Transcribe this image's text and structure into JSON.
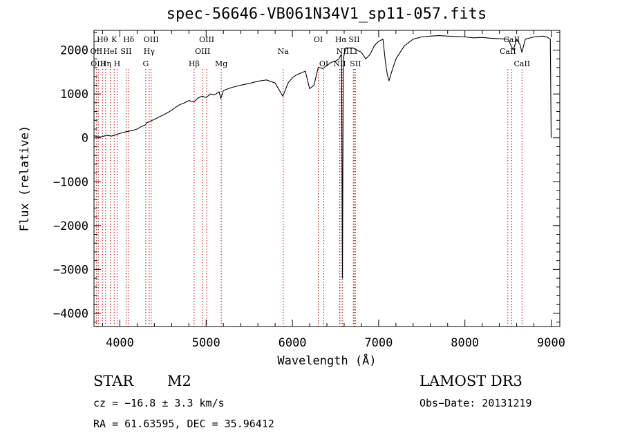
{
  "chart_data": {
    "type": "line",
    "title": "spec-56646-VB061N34V1_sp11-057.fits",
    "xlabel": "Wavelength (Å)",
    "ylabel": "Flux (relative)",
    "xlim": [
      3700,
      9100
    ],
    "ylim": [
      -4300,
      2450
    ],
    "xticks": [
      4000,
      5000,
      6000,
      7000,
      8000,
      9000
    ],
    "yticks": [
      -4000,
      -3000,
      -2000,
      -1000,
      0,
      1000,
      2000
    ],
    "series": [
      {
        "name": "flux",
        "x": [
          3700,
          3750,
          3800,
          3850,
          3900,
          3950,
          4000,
          4050,
          4100,
          4150,
          4200,
          4250,
          4300,
          4310,
          4350,
          4400,
          4450,
          4500,
          4550,
          4600,
          4650,
          4700,
          4750,
          4800,
          4860,
          4900,
          4950,
          5000,
          5050,
          5100,
          5150,
          5170,
          5180,
          5200,
          5300,
          5400,
          5500,
          5600,
          5700,
          5800,
          5850,
          5890,
          5900,
          5950,
          6000,
          6050,
          6100,
          6150,
          6200,
          6250,
          6300,
          6350,
          6400,
          6450,
          6500,
          6540,
          6560,
          6570,
          6580,
          6590,
          6600,
          6620,
          6650,
          6700,
          6750,
          6800,
          6850,
          6900,
          6950,
          7000,
          7050,
          7080,
          7100,
          7120,
          7150,
          7200,
          7300,
          7400,
          7500,
          7600,
          7700,
          7800,
          7900,
          8000,
          8100,
          8200,
          8300,
          8400,
          8500,
          8540,
          8560,
          8600,
          8640,
          8660,
          8700,
          8800,
          8900,
          8950,
          8990,
          9000
        ],
        "y": [
          50,
          20,
          30,
          60,
          40,
          70,
          100,
          130,
          150,
          170,
          200,
          260,
          300,
          340,
          380,
          420,
          470,
          520,
          570,
          630,
          700,
          760,
          800,
          850,
          820,
          900,
          950,
          920,
          1000,
          980,
          1050,
          900,
          950,
          1080,
          1150,
          1200,
          1240,
          1290,
          1320,
          1250,
          1080,
          950,
          1000,
          1250,
          1370,
          1440,
          1480,
          1520,
          1120,
          1200,
          1610,
          1580,
          1650,
          1720,
          1750,
          1800,
          1880,
          1900,
          -3200,
          1780,
          1900,
          2050,
          2050,
          2050,
          2000,
          1950,
          1800,
          1900,
          2100,
          2200,
          2250,
          1700,
          1450,
          1300,
          1500,
          1800,
          2100,
          2250,
          2300,
          2320,
          2330,
          2320,
          2310,
          2300,
          2280,
          2290,
          2270,
          2260,
          2250,
          2080,
          2000,
          2250,
          2120,
          1950,
          2250,
          2300,
          2320,
          2300,
          2250,
          0
        ]
      }
    ],
    "lines": [
      {
        "name": "Hθ",
        "wave": 3798,
        "row": 0
      },
      {
        "name": "OII",
        "wave": 3727,
        "row": 1
      },
      {
        "name": "OIII",
        "wave": 3750,
        "row": 2
      },
      {
        "name": "Hη",
        "wave": 3835,
        "row": 2
      },
      {
        "name": "HeI",
        "wave": 3889,
        "row": 1
      },
      {
        "name": "K",
        "wave": 3934,
        "row": 0
      },
      {
        "name": "H",
        "wave": 3968,
        "row": 2
      },
      {
        "name": "SII",
        "wave": 4072,
        "row": 1
      },
      {
        "name": "Hδ",
        "wave": 4102,
        "row": 0
      },
      {
        "name": "G",
        "wave": 4300,
        "row": 2
      },
      {
        "name": "Hγ",
        "wave": 4340,
        "row": 1
      },
      {
        "name": "OIII",
        "wave": 4363,
        "row": 0
      },
      {
        "name": "Hβ",
        "wave": 4861,
        "row": 2
      },
      {
        "name": "OIII",
        "wave": 4959,
        "row": 1
      },
      {
        "name": "OIII",
        "wave": 5007,
        "row": 0
      },
      {
        "name": "Mg",
        "wave": 5175,
        "row": 2
      },
      {
        "name": "Na",
        "wave": 5893,
        "row": 1
      },
      {
        "name": "OI",
        "wave": 6300,
        "row": 0
      },
      {
        "name": "OI",
        "wave": 6364,
        "row": 2
      },
      {
        "name": "NII",
        "wave": 6548,
        "row": 2
      },
      {
        "name": "Hα",
        "wave": 6563,
        "row": 0
      },
      {
        "name": "NII",
        "wave": 6583,
        "row": 1
      },
      {
        "name": "Li",
        "wave": 6707,
        "row": 1
      },
      {
        "name": "SII",
        "wave": 6716,
        "row": 0
      },
      {
        "name": "SII",
        "wave": 6731,
        "row": 2
      },
      {
        "name": "CaII",
        "wave": 8498,
        "row": 1
      },
      {
        "name": "CaII",
        "wave": 8542,
        "row": 0
      },
      {
        "name": "CaII",
        "wave": 8662,
        "row": 2
      }
    ]
  },
  "footer": {
    "object_type": "STAR",
    "subclass": "M2",
    "survey": "LAMOST DR3",
    "cz": "cz = −16.8 ± 3.3 km/s",
    "obs_date": "Obs−Date: 20131219",
    "coords": "RA =  61.63595, DEC =  35.96412"
  }
}
